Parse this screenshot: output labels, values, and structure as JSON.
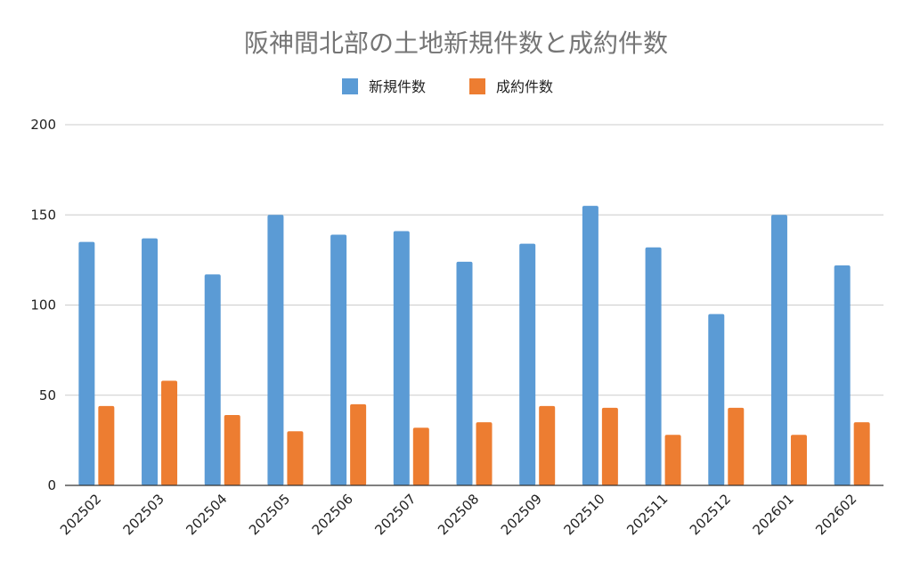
{
  "chart_data": {
    "type": "bar",
    "title": "阪神間北部の土地新規件数と成約件数",
    "xlabel": "",
    "ylabel": "",
    "ylim": [
      0,
      200
    ],
    "yticks": [
      0,
      50,
      100,
      150,
      200
    ],
    "grid": true,
    "legend_position": "top-center",
    "categories": [
      "202502",
      "202503",
      "202504",
      "202505",
      "202506",
      "202507",
      "202508",
      "202509",
      "202510",
      "202511",
      "202512",
      "202601",
      "202602"
    ],
    "series": [
      {
        "name": "新規件数",
        "color": "#5b9bd5",
        "values": [
          135,
          137,
          117,
          150,
          139,
          141,
          124,
          134,
          155,
          132,
          95,
          150,
          122
        ]
      },
      {
        "name": "成約件数",
        "color": "#ed7d31",
        "values": [
          44,
          58,
          39,
          30,
          45,
          32,
          35,
          44,
          43,
          28,
          43,
          28,
          35
        ]
      }
    ]
  }
}
